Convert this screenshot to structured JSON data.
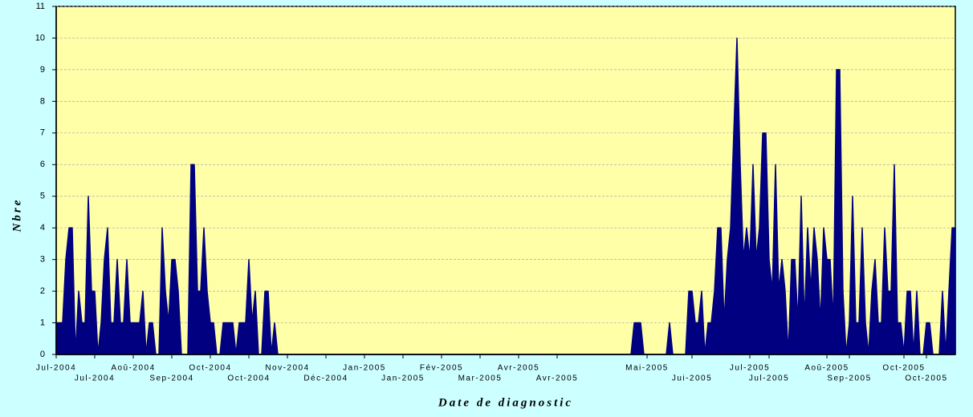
{
  "chart_data": {
    "type": "area",
    "y_label": "Nbre",
    "x_label": "Date de diagnostic",
    "color": "#000080",
    "grid": true,
    "ylim": [
      0,
      11
    ],
    "yticks": [
      0,
      1,
      2,
      3,
      4,
      5,
      6,
      7,
      8,
      9,
      10,
      11
    ],
    "categories": [
      "Jul-2004",
      null,
      null,
      null,
      null,
      null,
      null,
      null,
      null,
      null,
      null,
      null,
      "Jul-2004",
      null,
      null,
      null,
      null,
      null,
      null,
      null,
      null,
      null,
      null,
      null,
      "Aoû-2004",
      null,
      null,
      null,
      null,
      null,
      null,
      null,
      null,
      null,
      null,
      null,
      "Sep-2004",
      null,
      null,
      null,
      null,
      null,
      null,
      null,
      null,
      null,
      null,
      null,
      "Oct-2004",
      null,
      null,
      null,
      null,
      null,
      null,
      null,
      null,
      null,
      null,
      null,
      "Oct-2004",
      null,
      null,
      null,
      null,
      null,
      null,
      null,
      null,
      null,
      null,
      null,
      "Nov-2004",
      null,
      null,
      null,
      null,
      null,
      null,
      null,
      null,
      null,
      null,
      null,
      "Déc-2004",
      null,
      null,
      null,
      null,
      null,
      null,
      null,
      null,
      null,
      null,
      null,
      "Jan-2005",
      null,
      null,
      null,
      null,
      null,
      null,
      null,
      null,
      null,
      null,
      null,
      "Jan-2005",
      null,
      null,
      null,
      null,
      null,
      null,
      null,
      null,
      null,
      null,
      null,
      "Fév-2005",
      null,
      null,
      null,
      null,
      null,
      null,
      null,
      null,
      null,
      null,
      null,
      "Mar-2005",
      null,
      null,
      null,
      null,
      null,
      null,
      null,
      null,
      null,
      null,
      null,
      "Avr-2005",
      null,
      null,
      null,
      null,
      null,
      null,
      null,
      null,
      null,
      null,
      null,
      "Avr-2005",
      null,
      null,
      null,
      null,
      null,
      null,
      null,
      null,
      null,
      null,
      null,
      null,
      null,
      null,
      null,
      null,
      null,
      null,
      null,
      null,
      null,
      null,
      null,
      null,
      null,
      null,
      null,
      "Mai-2005",
      null,
      null,
      null,
      null,
      null,
      null,
      null,
      null,
      null,
      null,
      null,
      null,
      null,
      "Jui-2005",
      null,
      null,
      null,
      null,
      null,
      null,
      null,
      null,
      null,
      null,
      null,
      null,
      null,
      null,
      null,
      null,
      null,
      "Jul-2005",
      null,
      null,
      null,
      null,
      null,
      "Jul-2005",
      null,
      null,
      null,
      null,
      null,
      null,
      null,
      null,
      null,
      null,
      null,
      null,
      null,
      null,
      null,
      null,
      null,
      "Aoû-2005",
      null,
      null,
      null,
      null,
      null,
      null,
      "Sep-2005",
      null,
      null,
      null,
      null,
      null,
      null,
      null,
      null,
      null,
      null,
      null,
      null,
      null,
      null,
      null,
      null,
      "Oct-2005",
      null,
      null,
      null,
      null,
      null,
      null,
      "Oct-2005",
      null,
      null,
      null,
      null,
      null,
      null,
      null,
      null,
      null
    ],
    "values": [
      1,
      1,
      1,
      3,
      4,
      4,
      0,
      2,
      1,
      1,
      5,
      2,
      2,
      0,
      1,
      3,
      4,
      1,
      1,
      3,
      1,
      1,
      3,
      1,
      1,
      1,
      1,
      2,
      0,
      1,
      1,
      0,
      0,
      4,
      2,
      1,
      3,
      3,
      2,
      0,
      0,
      0,
      6,
      6,
      2,
      2,
      4,
      2,
      1,
      1,
      0,
      0,
      1,
      1,
      1,
      1,
      0,
      1,
      1,
      1,
      3,
      1,
      2,
      0,
      0,
      2,
      2,
      0,
      1,
      0,
      0,
      0,
      0,
      0,
      0,
      0,
      0,
      0,
      0,
      0,
      0,
      0,
      0,
      0,
      0,
      0,
      0,
      0,
      0,
      0,
      0,
      0,
      0,
      0,
      0,
      0,
      0,
      0,
      0,
      0,
      0,
      0,
      0,
      0,
      0,
      0,
      0,
      0,
      0,
      0,
      0,
      0,
      0,
      0,
      0,
      0,
      0,
      0,
      0,
      0,
      0,
      0,
      0,
      0,
      0,
      0,
      0,
      0,
      0,
      0,
      0,
      0,
      0,
      0,
      0,
      0,
      0,
      0,
      0,
      0,
      0,
      0,
      0,
      0,
      0,
      0,
      0,
      0,
      0,
      0,
      0,
      0,
      0,
      0,
      0,
      0,
      0,
      0,
      0,
      0,
      0,
      0,
      0,
      0,
      0,
      0,
      0,
      0,
      0,
      0,
      0,
      0,
      0,
      0,
      0,
      0,
      0,
      0,
      0,
      0,
      1,
      1,
      1,
      0,
      0,
      0,
      0,
      0,
      0,
      0,
      0,
      1,
      0,
      0,
      0,
      0,
      0,
      2,
      2,
      1,
      1,
      2,
      0,
      1,
      1,
      2,
      4,
      4,
      1,
      3,
      4,
      7,
      10,
      6,
      3,
      4,
      3,
      6,
      3,
      4,
      7,
      7,
      3,
      2,
      6,
      2,
      3,
      2,
      0,
      3,
      3,
      1,
      5,
      1,
      4,
      2,
      4,
      3,
      1,
      4,
      3,
      3,
      1,
      9,
      9,
      2,
      0,
      1,
      5,
      1,
      1,
      4,
      1,
      0,
      2,
      3,
      1,
      1,
      4,
      2,
      2,
      6,
      1,
      1,
      0,
      2,
      2,
      0,
      2,
      0,
      0,
      1,
      1,
      0,
      0,
      0,
      2,
      0,
      2,
      4,
      4
    ]
  }
}
